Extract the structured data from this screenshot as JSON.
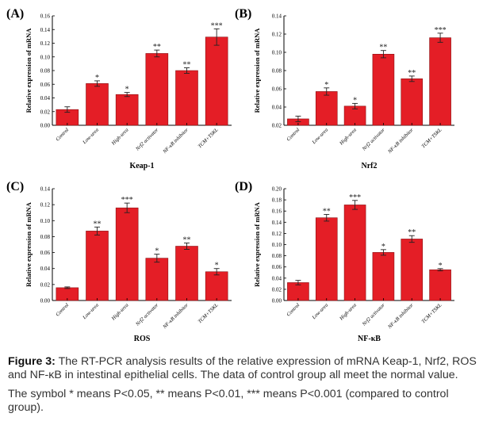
{
  "caption": {
    "figure_label": "Figure 3:",
    "text": " The RT-PCR analysis results of the relative expression of mRNA Keap-1, Nrf2, ROS and NF-κB in intestinal epithelial cells. The data of control group all meet the normal value.",
    "note": "The symbol * means P<0.05, ** means P<0.01, *** means P<0.001 (compared to control group)."
  },
  "colors": {
    "bar": "#e41e26",
    "bar_stroke": "#8a0f12"
  },
  "chart_data": [
    {
      "type": "bar",
      "panel": "(A)",
      "title": "",
      "xlabel": "Keap-1",
      "ylabel": "Relative expression of mRNA",
      "categories": [
        "Control",
        "Low-urea",
        "High-urea",
        "Nrf2 activator",
        "NF-κB inhibitor",
        "TCM+TSKL"
      ],
      "values": [
        0.023,
        0.061,
        0.045,
        0.105,
        0.08,
        0.129
      ],
      "errors": [
        0.004,
        0.004,
        0.003,
        0.005,
        0.004,
        0.012
      ],
      "significance": [
        "",
        "*",
        "*",
        "**",
        "**",
        "***"
      ],
      "ylim": [
        0,
        0.16
      ],
      "yticks": [
        "0.00",
        "0.02",
        "0.04",
        "0.06",
        "0.08",
        "0.10",
        "0.12",
        "0.14",
        "0.16"
      ],
      "ytick_values": [
        0,
        0.02,
        0.04,
        0.06,
        0.08,
        0.1,
        0.12,
        0.14,
        0.16
      ]
    },
    {
      "type": "bar",
      "panel": "(B)",
      "title": "",
      "xlabel": "Nrf2",
      "ylabel": "Relative expression of mRNA",
      "categories": [
        "Control",
        "Low-urea",
        "High-urea",
        "Nrf2 activator",
        "NF-κB inhibitor",
        "TCM+TSKL"
      ],
      "values": [
        0.027,
        0.057,
        0.041,
        0.098,
        0.071,
        0.116
      ],
      "errors": [
        0.003,
        0.004,
        0.003,
        0.004,
        0.003,
        0.005
      ],
      "significance": [
        "",
        "*",
        "*",
        "**",
        "**",
        "***"
      ],
      "ylim": [
        0.02,
        0.14
      ],
      "yticks": [
        "0.02",
        "0.04",
        "0.06",
        "0.08",
        "0.10",
        "0.12",
        "0.14"
      ],
      "ytick_values": [
        0.02,
        0.04,
        0.06,
        0.08,
        0.1,
        0.12,
        0.14
      ]
    },
    {
      "type": "bar",
      "panel": "(C)",
      "title": "",
      "xlabel": "ROS",
      "ylabel": "Relative expression of mRNA",
      "categories": [
        "Control",
        "Low-urea",
        "High-urea",
        "Nrf2 activator",
        "NF-κB inhibitor",
        "TCM+TSKL"
      ],
      "values": [
        0.016,
        0.087,
        0.116,
        0.053,
        0.068,
        0.036
      ],
      "errors": [
        0.001,
        0.005,
        0.006,
        0.005,
        0.004,
        0.004
      ],
      "significance": [
        "",
        "**",
        "***",
        "*",
        "**",
        "*"
      ],
      "ylim": [
        0,
        0.14
      ],
      "yticks": [
        "0.00",
        "0.02",
        "0.04",
        "0.06",
        "0.08",
        "0.10",
        "0.12",
        "0.14"
      ],
      "ytick_values": [
        0,
        0.02,
        0.04,
        0.06,
        0.08,
        0.1,
        0.12,
        0.14
      ]
    },
    {
      "type": "bar",
      "panel": "(D)",
      "title": "",
      "xlabel": "NF-κB",
      "ylabel": "Relative expression of mRNA",
      "categories": [
        "Control",
        "Low-urea",
        "High-urea",
        "Nrf2 activator",
        "NF-κB inhibitor",
        "TCM+TSKL"
      ],
      "values": [
        0.032,
        0.148,
        0.171,
        0.086,
        0.11,
        0.055
      ],
      "errors": [
        0.004,
        0.006,
        0.008,
        0.005,
        0.006,
        0.002
      ],
      "significance": [
        "",
        "**",
        "***",
        "*",
        "**",
        "*"
      ],
      "ylim": [
        0,
        0.2
      ],
      "yticks": [
        "0.00",
        "0.02",
        "0.04",
        "0.06",
        "0.08",
        "0.10",
        "0.12",
        "0.14",
        "0.16",
        "0.18",
        "0.20"
      ],
      "ytick_values": [
        0,
        0.02,
        0.04,
        0.06,
        0.08,
        0.1,
        0.12,
        0.14,
        0.16,
        0.18,
        0.2
      ]
    }
  ]
}
